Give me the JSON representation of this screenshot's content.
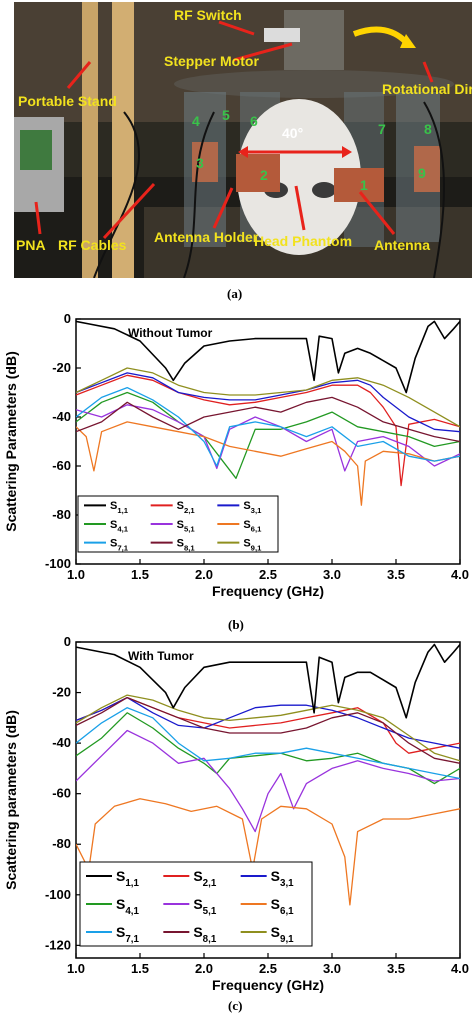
{
  "figure_a": {
    "panel_label": "(a)",
    "labels": [
      "RF Switch",
      "Stepper Motor",
      "Portable Stand",
      "Rotational Direction",
      "PNA",
      "RF Cables",
      "Antenna Holder",
      "Head Phantom",
      "Antenna",
      "40°"
    ],
    "antenna_numbers": [
      "1",
      "2",
      "3",
      "4",
      "5",
      "6",
      "7",
      "8",
      "9"
    ]
  },
  "figure_b": {
    "panel_label": "(b)"
  },
  "figure_c": {
    "panel_label": "(c)"
  },
  "chart_data": [
    {
      "type": "line",
      "annotation": "Without Tumor",
      "xlabel": "Frequency (GHz)",
      "ylabel": "Scattering Parameters (dB)",
      "xlim": [
        1.0,
        4.0
      ],
      "ylim": [
        -100,
        0
      ],
      "xticks": [
        "1.0",
        "1.5",
        "2.0",
        "2.5",
        "3.0",
        "3.5",
        "4.0"
      ],
      "yticks": [
        "0",
        "-20",
        "-40",
        "-60",
        "-80",
        "-100"
      ],
      "legend_position": "bottom-left",
      "legend_columns": 3,
      "series": [
        {
          "name": "S1,1",
          "color": "#000000",
          "x": [
            1.0,
            1.1,
            1.3,
            1.5,
            1.7,
            1.76,
            1.85,
            2.0,
            2.2,
            2.4,
            2.6,
            2.8,
            2.86,
            2.9,
            3.0,
            3.05,
            3.1,
            3.2,
            3.3,
            3.5,
            3.58,
            3.65,
            3.75,
            3.8,
            3.88,
            3.95,
            4.0
          ],
          "y": [
            -1,
            -2,
            -4,
            -9,
            -20,
            -25,
            -18,
            -11,
            -9,
            -8,
            -8,
            -8,
            -25,
            -7,
            -8,
            -22,
            -14,
            -12,
            -14,
            -20,
            -30,
            -16,
            -3,
            -1,
            -8,
            -4,
            -1
          ]
        },
        {
          "name": "S2,1",
          "color": "#e02020",
          "x": [
            1.0,
            1.2,
            1.4,
            1.6,
            1.8,
            2.0,
            2.2,
            2.4,
            2.6,
            2.8,
            3.0,
            3.2,
            3.3,
            3.4,
            3.5,
            3.54,
            3.6,
            3.8,
            4.0
          ],
          "y": [
            -31,
            -27,
            -23,
            -25,
            -30,
            -33,
            -35,
            -34,
            -32,
            -30,
            -27,
            -27,
            -30,
            -36,
            -44,
            -68,
            -43,
            -41,
            -44
          ]
        },
        {
          "name": "S3,1",
          "color": "#1a1acc",
          "x": [
            1.0,
            1.2,
            1.4,
            1.6,
            1.8,
            2.0,
            2.2,
            2.4,
            2.6,
            2.8,
            3.0,
            3.2,
            3.3,
            3.4,
            3.6,
            3.8,
            4.0
          ],
          "y": [
            -30,
            -26,
            -22,
            -24,
            -30,
            -32,
            -33,
            -33,
            -31,
            -29,
            -26,
            -25,
            -27,
            -32,
            -40,
            -45,
            -46
          ]
        },
        {
          "name": "S4,1",
          "color": "#229922",
          "x": [
            1.0,
            1.2,
            1.4,
            1.6,
            1.8,
            2.0,
            2.25,
            2.4,
            2.6,
            2.8,
            3.0,
            3.2,
            3.4,
            3.6,
            3.8,
            4.0
          ],
          "y": [
            -42,
            -34,
            -30,
            -34,
            -42,
            -48,
            -65,
            -45,
            -45,
            -42,
            -38,
            -44,
            -46,
            -48,
            -52,
            -50
          ]
        },
        {
          "name": "S5,1",
          "color": "#9933dd",
          "x": [
            1.0,
            1.2,
            1.4,
            1.6,
            1.8,
            2.0,
            2.1,
            2.2,
            2.4,
            2.6,
            2.8,
            3.0,
            3.1,
            3.2,
            3.4,
            3.6,
            3.8,
            4.0
          ],
          "y": [
            -37,
            -40,
            -35,
            -37,
            -42,
            -48,
            -61,
            -45,
            -40,
            -44,
            -50,
            -45,
            -62,
            -50,
            -48,
            -52,
            -60,
            -55
          ]
        },
        {
          "name": "S6,1",
          "color": "#ee7722",
          "x": [
            1.0,
            1.08,
            1.14,
            1.2,
            1.4,
            1.6,
            1.8,
            2.0,
            2.2,
            2.4,
            2.6,
            2.8,
            3.0,
            3.1,
            3.2,
            3.23,
            3.26,
            3.4,
            3.6,
            3.8,
            4.0
          ],
          "y": [
            -44,
            -48,
            -62,
            -46,
            -42,
            -44,
            -46,
            -48,
            -52,
            -54,
            -56,
            -53,
            -50,
            -54,
            -60,
            -76,
            -58,
            -54,
            -55,
            -58,
            -56
          ]
        },
        {
          "name": "S7,1",
          "color": "#1aa0e8",
          "x": [
            1.0,
            1.2,
            1.4,
            1.6,
            1.8,
            2.0,
            2.1,
            2.2,
            2.4,
            2.6,
            2.8,
            3.0,
            3.2,
            3.4,
            3.6,
            3.8,
            4.0
          ],
          "y": [
            -40,
            -32,
            -28,
            -33,
            -40,
            -50,
            -60,
            -44,
            -42,
            -44,
            -48,
            -44,
            -52,
            -50,
            -56,
            -58,
            -56
          ]
        },
        {
          "name": "S8,1",
          "color": "#771530",
          "x": [
            1.0,
            1.2,
            1.4,
            1.6,
            1.8,
            2.0,
            2.2,
            2.4,
            2.6,
            2.8,
            3.0,
            3.2,
            3.4,
            3.6,
            3.8,
            4.0
          ],
          "y": [
            -46,
            -42,
            -34,
            -40,
            -45,
            -40,
            -38,
            -36,
            -38,
            -34,
            -32,
            -36,
            -42,
            -45,
            -48,
            -50
          ]
        },
        {
          "name": "S9,1",
          "color": "#8f8f1f",
          "x": [
            1.0,
            1.2,
            1.4,
            1.6,
            1.8,
            2.0,
            2.2,
            2.4,
            2.6,
            2.8,
            3.0,
            3.2,
            3.4,
            3.6,
            3.8,
            4.0
          ],
          "y": [
            -30,
            -25,
            -20,
            -22,
            -27,
            -30,
            -31,
            -31,
            -30,
            -29,
            -25,
            -24,
            -27,
            -32,
            -38,
            -44
          ]
        }
      ]
    },
    {
      "type": "line",
      "annotation": "With Tumor",
      "xlabel": "Frequency (GHz)",
      "ylabel": "Scattering parameters (dB)",
      "xlim": [
        1.0,
        4.0
      ],
      "ylim": [
        -125,
        0
      ],
      "xticks": [
        "1.0",
        "1.5",
        "2.0",
        "2.5",
        "3.0",
        "3.5",
        "4.0"
      ],
      "yticks": [
        "0",
        "-20",
        "-40",
        "-60",
        "-80",
        "-100",
        "-120"
      ],
      "legend_position": "bottom-left",
      "legend_columns": 3,
      "series": [
        {
          "name": "S1,1",
          "color": "#000000",
          "x": [
            1.0,
            1.1,
            1.3,
            1.5,
            1.7,
            1.76,
            1.85,
            2.0,
            2.2,
            2.4,
            2.6,
            2.8,
            2.86,
            2.9,
            3.0,
            3.05,
            3.1,
            3.2,
            3.3,
            3.5,
            3.58,
            3.65,
            3.75,
            3.8,
            3.88,
            3.95,
            4.0
          ],
          "y": [
            -2,
            -3,
            -5,
            -10,
            -20,
            -26,
            -18,
            -10,
            -8,
            -8,
            -8,
            -8,
            -28,
            -6,
            -8,
            -24,
            -14,
            -12,
            -12,
            -18,
            -30,
            -16,
            -4,
            -1,
            -8,
            -4,
            -1
          ]
        },
        {
          "name": "S2,1",
          "color": "#e02020",
          "x": [
            1.0,
            1.2,
            1.4,
            1.6,
            1.8,
            2.0,
            2.2,
            2.4,
            2.6,
            2.8,
            3.0,
            3.2,
            3.4,
            3.5,
            3.6,
            3.8,
            4.0
          ],
          "y": [
            -31,
            -27,
            -22,
            -26,
            -30,
            -32,
            -34,
            -33,
            -32,
            -30,
            -28,
            -26,
            -32,
            -40,
            -44,
            -42,
            -40
          ]
        },
        {
          "name": "S3,1",
          "color": "#1a1acc",
          "x": [
            1.0,
            1.2,
            1.4,
            1.6,
            1.8,
            2.0,
            2.2,
            2.4,
            2.6,
            2.8,
            3.0,
            3.2,
            3.4,
            3.6,
            3.8,
            4.0
          ],
          "y": [
            -31,
            -27,
            -22,
            -28,
            -33,
            -34,
            -30,
            -26,
            -25,
            -25,
            -27,
            -30,
            -34,
            -38,
            -40,
            -42
          ]
        },
        {
          "name": "S4,1",
          "color": "#229922",
          "x": [
            1.0,
            1.2,
            1.4,
            1.6,
            1.8,
            2.0,
            2.1,
            2.2,
            2.4,
            2.6,
            2.8,
            3.0,
            3.2,
            3.4,
            3.6,
            3.8,
            4.0
          ],
          "y": [
            -45,
            -38,
            -28,
            -34,
            -42,
            -48,
            -52,
            -46,
            -45,
            -44,
            -47,
            -46,
            -44,
            -48,
            -50,
            -56,
            -50
          ]
        },
        {
          "name": "S5,1",
          "color": "#9933dd",
          "x": [
            1.0,
            1.2,
            1.4,
            1.6,
            1.8,
            2.0,
            2.2,
            2.3,
            2.4,
            2.5,
            2.6,
            2.7,
            2.8,
            3.0,
            3.2,
            3.4,
            3.6,
            3.8,
            4.0
          ],
          "y": [
            -55,
            -45,
            -35,
            -40,
            -48,
            -46,
            -58,
            -66,
            -75,
            -60,
            -52,
            -66,
            -56,
            -50,
            -47,
            -50,
            -52,
            -55,
            -54
          ]
        },
        {
          "name": "S6,1",
          "color": "#ee7722",
          "x": [
            1.0,
            1.05,
            1.1,
            1.15,
            1.3,
            1.5,
            1.7,
            1.9,
            2.1,
            2.3,
            2.38,
            2.45,
            2.6,
            2.8,
            3.0,
            3.1,
            3.14,
            3.2,
            3.4,
            3.6,
            3.8,
            4.0
          ],
          "y": [
            -80,
            -85,
            -90,
            -72,
            -65,
            -62,
            -64,
            -67,
            -65,
            -70,
            -90,
            -70,
            -65,
            -66,
            -72,
            -85,
            -104,
            -75,
            -70,
            -70,
            -68,
            -66
          ]
        },
        {
          "name": "S7,1",
          "color": "#1aa0e8",
          "x": [
            1.0,
            1.2,
            1.4,
            1.6,
            1.8,
            2.0,
            2.2,
            2.4,
            2.6,
            2.8,
            3.0,
            3.2,
            3.4,
            3.6,
            3.8,
            4.0
          ],
          "y": [
            -40,
            -32,
            -26,
            -30,
            -40,
            -47,
            -46,
            -44,
            -44,
            -42,
            -44,
            -46,
            -48,
            -50,
            -52,
            -54
          ]
        },
        {
          "name": "S8,1",
          "color": "#771530",
          "x": [
            1.0,
            1.2,
            1.4,
            1.6,
            1.8,
            2.0,
            2.2,
            2.4,
            2.6,
            2.8,
            3.0,
            3.2,
            3.4,
            3.6,
            3.8,
            4.0
          ],
          "y": [
            -33,
            -28,
            -22,
            -26,
            -30,
            -34,
            -36,
            -36,
            -36,
            -34,
            -30,
            -28,
            -32,
            -40,
            -46,
            -48
          ]
        },
        {
          "name": "S9,1",
          "color": "#8f8f1f",
          "x": [
            1.0,
            1.2,
            1.4,
            1.6,
            1.8,
            2.0,
            2.2,
            2.4,
            2.6,
            2.8,
            3.0,
            3.2,
            3.4,
            3.6,
            3.8,
            4.0
          ],
          "y": [
            -32,
            -26,
            -21,
            -23,
            -27,
            -30,
            -31,
            -30,
            -29,
            -27,
            -25,
            -27,
            -30,
            -37,
            -44,
            -47
          ]
        }
      ]
    }
  ]
}
